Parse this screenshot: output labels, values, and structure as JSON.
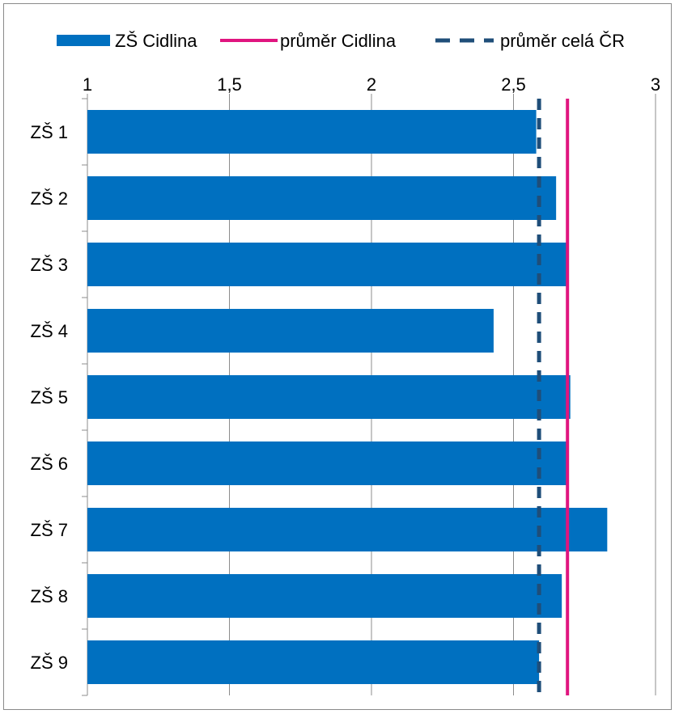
{
  "chart_data": {
    "type": "bar",
    "orientation": "horizontal",
    "categories": [
      "ZŠ 1",
      "ZŠ 2",
      "ZŠ 3",
      "ZŠ 4",
      "ZŠ 5",
      "ZŠ 6",
      "ZŠ 7",
      "ZŠ 8",
      "ZŠ 9"
    ],
    "series": [
      {
        "name": "ZŠ Cidlina",
        "values": [
          2.58,
          2.65,
          2.69,
          2.43,
          2.7,
          2.69,
          2.83,
          2.67,
          2.59
        ],
        "color": "#0070C0"
      }
    ],
    "reference_lines": [
      {
        "name": "průměr Cidlina",
        "value": 2.69,
        "color": "#E0157F",
        "style": "solid"
      },
      {
        "name": "průměr celá ČR",
        "value": 2.59,
        "color": "#1F4E79",
        "style": "dashed"
      }
    ],
    "x_axis": {
      "min": 1,
      "max": 3,
      "position": "top",
      "ticks": [
        1,
        1.5,
        2,
        2.5,
        3
      ],
      "tick_labels": [
        "1",
        "1,5",
        "2",
        "2,5",
        "3"
      ]
    },
    "grid": true,
    "legend_position": "top",
    "title": "",
    "xlabel": "",
    "ylabel": ""
  }
}
